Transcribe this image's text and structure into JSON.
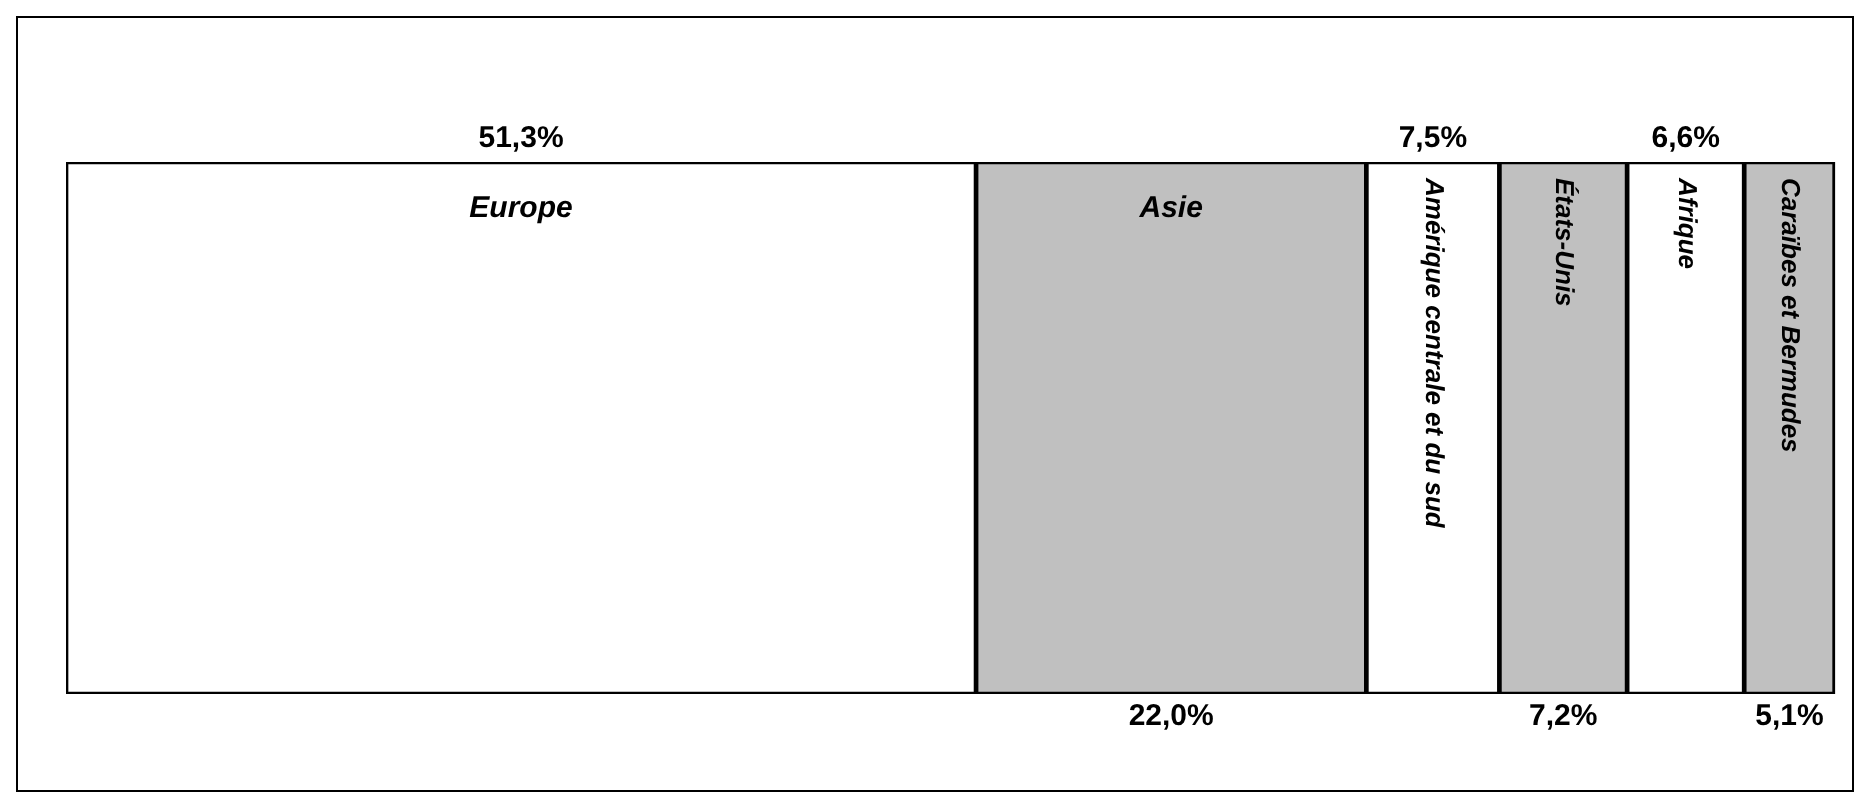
{
  "chart_data": {
    "type": "bar",
    "orientation": "horizontal",
    "stacked": true,
    "relative": false,
    "tick_labels": false,
    "legend": false,
    "categories": [
      null
    ],
    "series": [
      {
        "name": "Europe",
        "color": "#ffffff",
        "values": [
          51.3
        ],
        "value_labels": [
          "51,3%"
        ]
      },
      {
        "name": "Asie",
        "color": "#c0c0c0",
        "values": [
          22.0
        ],
        "value_labels": [
          "22,0%"
        ]
      },
      {
        "name": "Amérique centrale et du sud",
        "color": "#ffffff",
        "values": [
          7.5
        ],
        "value_labels": [
          "7,5%"
        ]
      },
      {
        "name": "États-Unis",
        "color": "#c0c0c0",
        "values": [
          7.2
        ],
        "value_labels": [
          "7,2%"
        ]
      },
      {
        "name": "Afrique",
        "color": "#ffffff",
        "values": [
          6.6
        ],
        "value_labels": [
          "6,6%"
        ]
      },
      {
        "name": "Caraïbes et Bermudes",
        "color": "#c0c0c0",
        "values": [
          5.1
        ],
        "value_labels": [
          "5,1%"
        ]
      }
    ]
  }
}
